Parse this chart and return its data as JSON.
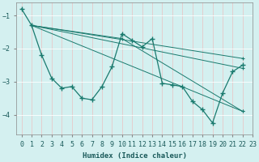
{
  "xlabel": "Humidex (Indice chaleur)",
  "bg_color": "#d4f0f0",
  "grid_color": "#c8e8e8",
  "line_color": "#1a7a6e",
  "xlim": [
    -0.5,
    23
  ],
  "ylim": [
    -4.6,
    -0.6
  ],
  "yticks": [
    -4,
    -3,
    -2,
    -1
  ],
  "xticks": [
    0,
    1,
    2,
    3,
    4,
    5,
    6,
    7,
    8,
    9,
    10,
    11,
    12,
    13,
    14,
    15,
    16,
    17,
    18,
    19,
    20,
    21,
    22,
    23
  ],
  "main_line": {
    "x": [
      0,
      1,
      2,
      3,
      4,
      5,
      6,
      7,
      8,
      9,
      10,
      11,
      12,
      13,
      14,
      15,
      16,
      17,
      18,
      19,
      20,
      21,
      22
    ],
    "y": [
      -0.8,
      -1.3,
      -2.2,
      -2.9,
      -3.2,
      -3.15,
      -3.5,
      -3.55,
      -3.15,
      -2.55,
      -1.55,
      -1.75,
      -1.95,
      -1.7,
      -3.05,
      -3.1,
      -3.15,
      -3.6,
      -3.85,
      -4.25,
      -3.35,
      -2.7,
      -2.5
    ]
  },
  "diag_lines": [
    {
      "x": [
        1,
        22
      ],
      "y": [
        -1.3,
        -2.3
      ]
    },
    {
      "x": [
        1,
        22
      ],
      "y": [
        -1.3,
        -2.6
      ]
    },
    {
      "x": [
        1,
        10,
        22
      ],
      "y": [
        -1.3,
        -1.7,
        -3.9
      ]
    },
    {
      "x": [
        1,
        22
      ],
      "y": [
        -1.3,
        -3.9
      ]
    }
  ]
}
